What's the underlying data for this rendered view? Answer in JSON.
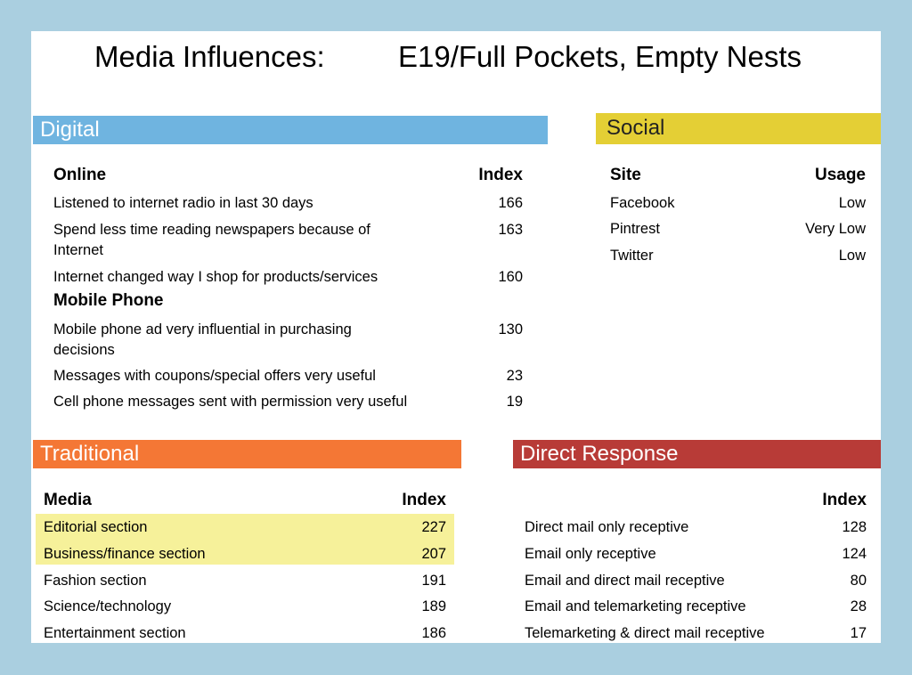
{
  "title": {
    "main": "Media Influences:",
    "segment": "E19/Full Pockets, Empty Nests"
  },
  "digital": {
    "heading": "Digital",
    "columns": [
      "Online",
      "Index"
    ],
    "rows": [
      [
        "Listened to internet radio in last 30 days",
        166
      ],
      [
        "Spend less time reading newspapers because of Internet",
        163
      ],
      [
        "Internet changed way I shop for products/services",
        160
      ]
    ],
    "subheading": "Mobile Phone",
    "mobile_rows": [
      [
        "Mobile phone ad very influential in purchasing decisions",
        130
      ],
      [
        "Messages with coupons/special offers very useful",
        23
      ],
      [
        "Cell phone messages sent with permission very useful",
        19
      ]
    ]
  },
  "social": {
    "heading": "Social",
    "columns": [
      "Site",
      "Usage"
    ],
    "rows": [
      [
        "Facebook",
        "Low"
      ],
      [
        "Pintrest",
        "Very Low"
      ],
      [
        "Twitter",
        "Low"
      ]
    ]
  },
  "traditional": {
    "heading": "Traditional",
    "columns": [
      "Media",
      "Index"
    ],
    "rows": [
      [
        "Editorial section",
        227
      ],
      [
        "Business/finance section",
        207
      ],
      [
        "Fashion section",
        191
      ],
      [
        "Science/technology",
        189
      ],
      [
        "Entertainment section",
        186
      ]
    ]
  },
  "direct_response": {
    "heading": "Direct Response",
    "columns": [
      "Index"
    ],
    "rows": [
      [
        "Direct mail only receptive",
        128
      ],
      [
        "Email only receptive",
        124
      ],
      [
        "Email and direct mail receptive",
        80
      ],
      [
        "Email and telemarketing receptive",
        28
      ],
      [
        "Telemarketing & direct mail receptive",
        17
      ]
    ]
  }
}
